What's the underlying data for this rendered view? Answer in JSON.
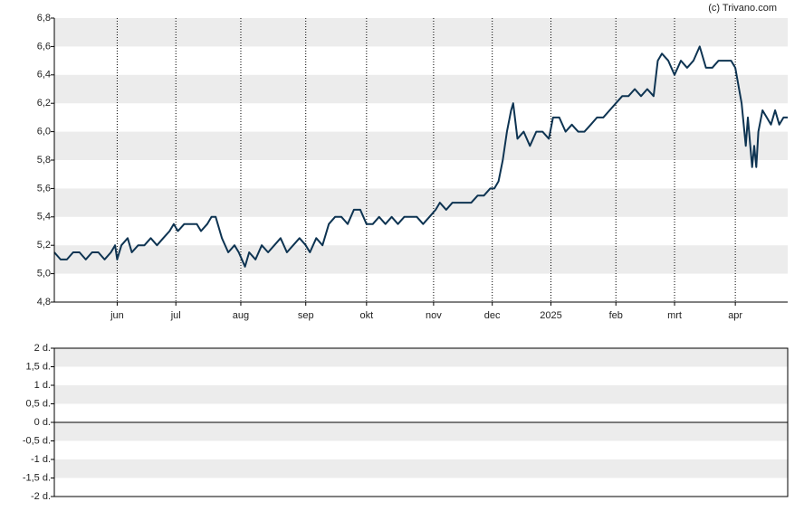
{
  "chart_data": [
    {
      "type": "line",
      "annotation": "(c) Trivano.com",
      "xlim": [
        0,
        350
      ],
      "xticks": [
        {
          "value": 30,
          "label": "jun"
        },
        {
          "value": 58,
          "label": "jul"
        },
        {
          "value": 89,
          "label": "aug"
        },
        {
          "value": 120,
          "label": "sep"
        },
        {
          "value": 149,
          "label": "okt"
        },
        {
          "value": 181,
          "label": "nov"
        },
        {
          "value": 209,
          "label": "dec"
        },
        {
          "value": 237,
          "label": "2025"
        },
        {
          "value": 268,
          "label": "feb"
        },
        {
          "value": 296,
          "label": "mrt"
        },
        {
          "value": 325,
          "label": "apr"
        }
      ],
      "ylim": [
        4.8,
        6.8
      ],
      "yticks": [
        {
          "value": 4.8,
          "label": "4,8"
        },
        {
          "value": 5.0,
          "label": "5,0"
        },
        {
          "value": 5.2,
          "label": "5,2"
        },
        {
          "value": 5.4,
          "label": "5,4"
        },
        {
          "value": 5.6,
          "label": "5,6"
        },
        {
          "value": 5.8,
          "label": "5,8"
        },
        {
          "value": 6.0,
          "label": "6,0"
        },
        {
          "value": 6.2,
          "label": "6,2"
        },
        {
          "value": 6.4,
          "label": "6,4"
        },
        {
          "value": 6.6,
          "label": "6,6"
        },
        {
          "value": 6.8,
          "label": "6,8"
        }
      ],
      "grid": true,
      "color": "#0e3452",
      "x": [
        0,
        3,
        6,
        9,
        12,
        15,
        18,
        21,
        24,
        27,
        29,
        30,
        32,
        35,
        37,
        40,
        43,
        46,
        49,
        52,
        55,
        57,
        59,
        62,
        65,
        68,
        70,
        73,
        75,
        77,
        80,
        83,
        86,
        88,
        91,
        93,
        96,
        99,
        102,
        105,
        108,
        111,
        114,
        117,
        120,
        122,
        125,
        128,
        131,
        134,
        137,
        140,
        143,
        146,
        149,
        152,
        155,
        158,
        161,
        164,
        167,
        170,
        173,
        176,
        179,
        182,
        184,
        187,
        190,
        193,
        196,
        199,
        202,
        205,
        208,
        210,
        212,
        214,
        216,
        218,
        219,
        221,
        224,
        227,
        230,
        233,
        236,
        238,
        241,
        244,
        247,
        250,
        253,
        256,
        259,
        262,
        265,
        268,
        271,
        274,
        277,
        280,
        283,
        286,
        288,
        290,
        293,
        296,
        299,
        302,
        305,
        308,
        311,
        314,
        317,
        320,
        323,
        325,
        328,
        330,
        331,
        333,
        334,
        335,
        336,
        338,
        340,
        342,
        344,
        346,
        348,
        350
      ],
      "values": [
        5.15,
        5.1,
        5.1,
        5.15,
        5.15,
        5.1,
        5.15,
        5.15,
        5.1,
        5.15,
        5.2,
        5.1,
        5.2,
        5.25,
        5.15,
        5.2,
        5.2,
        5.25,
        5.2,
        5.25,
        5.3,
        5.35,
        5.3,
        5.35,
        5.35,
        5.35,
        5.3,
        5.35,
        5.4,
        5.4,
        5.25,
        5.15,
        5.2,
        5.15,
        5.05,
        5.15,
        5.1,
        5.2,
        5.15,
        5.2,
        5.25,
        5.15,
        5.2,
        5.25,
        5.2,
        5.15,
        5.25,
        5.2,
        5.35,
        5.4,
        5.4,
        5.35,
        5.45,
        5.45,
        5.35,
        5.35,
        5.4,
        5.35,
        5.4,
        5.35,
        5.4,
        5.4,
        5.4,
        5.35,
        5.4,
        5.45,
        5.5,
        5.45,
        5.5,
        5.5,
        5.5,
        5.5,
        5.55,
        5.55,
        5.6,
        5.6,
        5.65,
        5.8,
        6.0,
        6.15,
        6.2,
        5.95,
        6.0,
        5.9,
        6.0,
        6.0,
        5.95,
        6.1,
        6.1,
        6.0,
        6.05,
        6.0,
        6.0,
        6.05,
        6.1,
        6.1,
        6.15,
        6.2,
        6.25,
        6.25,
        6.3,
        6.25,
        6.3,
        6.25,
        6.5,
        6.55,
        6.5,
        6.4,
        6.5,
        6.45,
        6.5,
        6.6,
        6.45,
        6.45,
        6.5,
        6.5,
        6.5,
        6.45,
        6.2,
        5.9,
        6.1,
        5.75,
        5.9,
        5.75,
        6.0,
        6.15,
        6.1,
        6.05,
        6.15,
        6.05,
        6.1,
        6.1
      ]
    },
    {
      "type": "bar",
      "ylim": [
        -2,
        2
      ],
      "yticks": [
        {
          "value": -2,
          "label": "-2 d."
        },
        {
          "value": -1.5,
          "label": "-1,5 d."
        },
        {
          "value": -1,
          "label": "-1 d."
        },
        {
          "value": -0.5,
          "label": "-0,5 d."
        },
        {
          "value": 0,
          "label": "0 d."
        },
        {
          "value": 0.5,
          "label": "0,5 d."
        },
        {
          "value": 1,
          "label": "1 d."
        },
        {
          "value": 1.5,
          "label": "1,5 d."
        },
        {
          "value": 2,
          "label": "2 d."
        }
      ],
      "grid": true
    }
  ]
}
